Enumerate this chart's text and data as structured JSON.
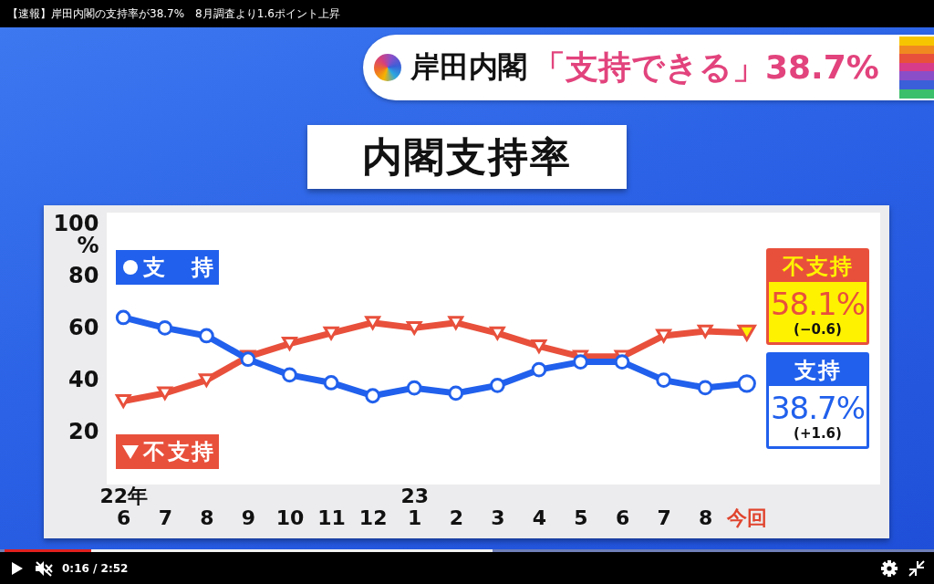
{
  "chart_data": {
    "type": "line",
    "title": "内閣支持率",
    "ylabel": "%",
    "categories": [
      "22年\n6",
      "7",
      "8",
      "9",
      "10",
      "11",
      "12",
      "23\n1",
      "2",
      "3",
      "4",
      "5",
      "6",
      "7",
      "8",
      "今回"
    ],
    "ylim": [
      0,
      100
    ],
    "yticks": [
      20,
      40,
      60,
      80,
      100
    ],
    "legend": "left",
    "line_style": "solid",
    "series": [
      {
        "name": "支持",
        "color": "#2160ec",
        "marker": "circle",
        "values": [
          64,
          60,
          57,
          48,
          42,
          39,
          34,
          37,
          35,
          38,
          44,
          47,
          47,
          40,
          37.1,
          38.7
        ],
        "colors": [
          "#ffffff",
          "#ffffff",
          "#ffffff",
          "#ffffff",
          "#ffffff",
          "#ffffff",
          "#ffffff",
          "#ffffff",
          "#ffffff",
          "#ffffff",
          "#ffffff",
          "#ffffff",
          "#ffffff",
          "#ffffff",
          "#ffffff",
          "#ffffff"
        ],
        "value_labels": [
          null,
          null,
          null,
          null,
          null,
          null,
          null,
          null,
          null,
          null,
          null,
          null,
          null,
          null,
          null,
          "38.7%"
        ]
      },
      {
        "name": "不支持",
        "color": "#e8503c",
        "marker": "triangle",
        "values": [
          32,
          35,
          40,
          49,
          54,
          58,
          62,
          60,
          62,
          58,
          53,
          49,
          49,
          57,
          58.7,
          58.1
        ],
        "colors": [
          "#ffffff",
          "#ffffff",
          "#ffffff",
          "#ffffff",
          "#ffffff",
          "#ffffff",
          "#ffffff",
          "#ffffff",
          "#ffffff",
          "#ffffff",
          "#ffffff",
          "#ffffff",
          "#ffffff",
          "#ffffff",
          "#ffffff",
          "#fff200"
        ],
        "value_labels": [
          null,
          null,
          null,
          null,
          null,
          null,
          null,
          null,
          null,
          null,
          null,
          null,
          null,
          null,
          null,
          "58.1%"
        ]
      }
    ],
    "annotations": [
      "【速報】岸田内閣の支持率が38.7%　8月調査より1.6ポイント上昇",
      "岸田内閣",
      "「支持できる」38.7%",
      "(−0.6)",
      "(+1.6)",
      "0:16 / 2:52"
    ]
  }
}
